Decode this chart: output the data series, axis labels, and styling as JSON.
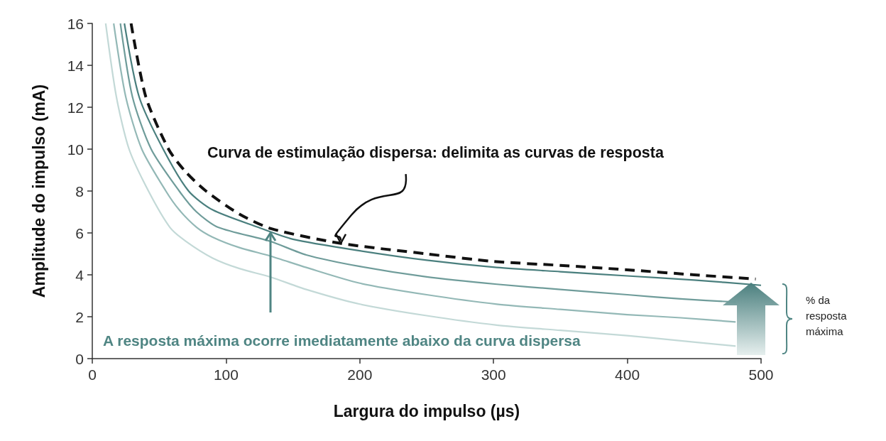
{
  "chart_data": {
    "type": "line",
    "xlabel": "Largura do impulso (µs)",
    "ylabel": "Amplitude do impulso (mA)",
    "xlim": [
      0,
      500
    ],
    "xticks": [
      0,
      100,
      200,
      300,
      400,
      500
    ],
    "ylim": [
      0,
      16
    ],
    "yticks": [
      0,
      2,
      4,
      6,
      8,
      10,
      12,
      14,
      16
    ],
    "grid": false,
    "marker": "none",
    "series": [
      {
        "color": "#c3d9d7",
        "x": [
          10,
          18,
          27.5,
          42,
          58,
          70,
          90,
          110,
          133,
          160,
          200,
          250,
          302.5,
          350,
          400,
          440,
          481
        ],
        "values": [
          16,
          12.5,
          10,
          8,
          6.27,
          5.6,
          4.8,
          4.3,
          3.9,
          3.3,
          2.6,
          2.05,
          1.6,
          1.35,
          1.1,
          0.85,
          0.6
        ]
      },
      {
        "color": "#93b8b6",
        "x": [
          16,
          25,
          37,
          55,
          65,
          78,
          90,
          110,
          133,
          160,
          200,
          250,
          302.5,
          350,
          400,
          440,
          481
        ],
        "values": [
          16,
          12.5,
          10,
          8,
          7.1,
          6.27,
          5.8,
          5.3,
          4.9,
          4.35,
          3.6,
          3.05,
          2.6,
          2.35,
          2.1,
          1.95,
          1.75
        ]
      },
      {
        "color": "#6f9c9a",
        "x": [
          21,
          30,
          44,
          65,
          78,
          94,
          133,
          160,
          200,
          250,
          302.5,
          350,
          400,
          440,
          481
        ],
        "values": [
          16,
          12.5,
          10,
          8,
          7.0,
          6.27,
          5.6,
          4.95,
          4.4,
          3.9,
          3.55,
          3.3,
          3.05,
          2.85,
          2.7
        ]
      },
      {
        "color": "#4a7f7e",
        "x": [
          24,
          35,
          53,
          72,
          90,
          124,
          150,
          200,
          250,
          302.5,
          350,
          400,
          450,
          500
        ],
        "values": [
          16,
          12.5,
          10,
          8,
          7.1,
          6.27,
          5.7,
          5.15,
          4.7,
          4.35,
          4.15,
          3.95,
          3.75,
          3.5
        ]
      },
      {
        "color": "#111111",
        "line_style": "dashed",
        "x": [
          29,
          40,
          57,
          70,
          85,
          110,
          134,
          186,
          250,
          300,
          350,
          400,
          450,
          496
        ],
        "values": [
          16,
          12.5,
          10,
          8.9,
          8,
          6.9,
          6.2,
          5.5,
          5.0,
          4.64,
          4.45,
          4.24,
          4.0,
          3.8
        ]
      }
    ],
    "annotations": [
      {
        "text": "Curva de estimulação dispersa: delimita as curvas de resposta",
        "x": 186,
        "y": 5.5
      },
      "A resposta máxima ocorre imediatamente abaixo da curva dispersa",
      "% da resposta máxima"
    ]
  }
}
